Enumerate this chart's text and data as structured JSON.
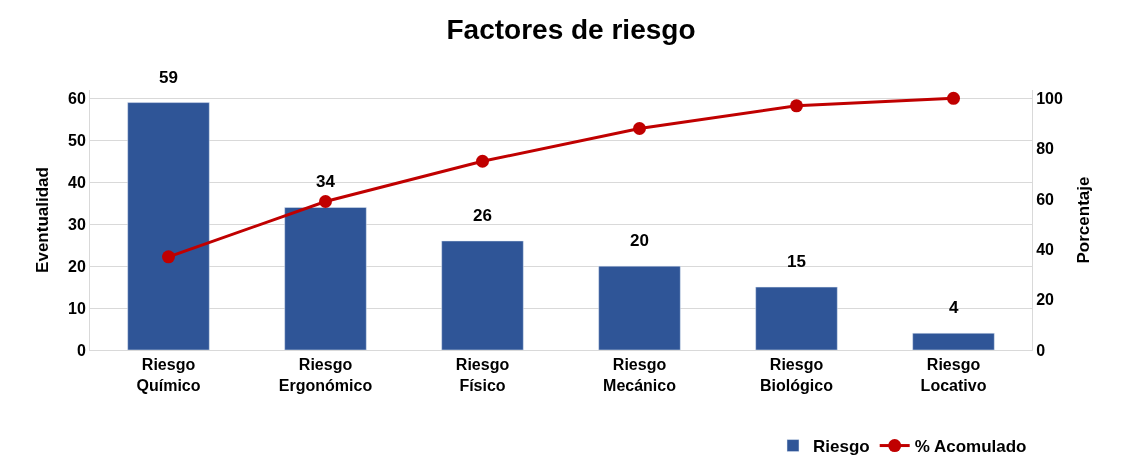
{
  "chart_data": {
    "type": "bar",
    "title": "Factores de riesgo",
    "ylabel": "Eventualidad",
    "y2label": "Porcentaje",
    "categories": [
      "Riesgo Químico",
      "Riesgo Ergonómico",
      "Riesgo Físico",
      "Riesgo Mecánico",
      "Riesgo Biológico",
      "Riesgo Locativo"
    ],
    "series": [
      {
        "name": "Riesgo",
        "color": "#2f5597",
        "values": [
          59,
          34,
          26,
          20,
          15,
          4
        ],
        "data_labels": true
      },
      {
        "name": "% Acomulado",
        "type": "line",
        "axis": "y2",
        "color": "#c00000",
        "values": [
          37,
          59,
          75,
          88,
          97,
          100
        ],
        "marker": "circle",
        "line_style": "solid"
      }
    ],
    "ylim": [
      0,
      62
    ],
    "yticks": [
      0,
      10,
      20,
      30,
      40,
      50,
      60
    ],
    "y2lim": [
      0,
      103.3
    ],
    "y2ticks": [
      0,
      20,
      40,
      60,
      80,
      100
    ],
    "grid": "y",
    "legend": "bottom right"
  }
}
